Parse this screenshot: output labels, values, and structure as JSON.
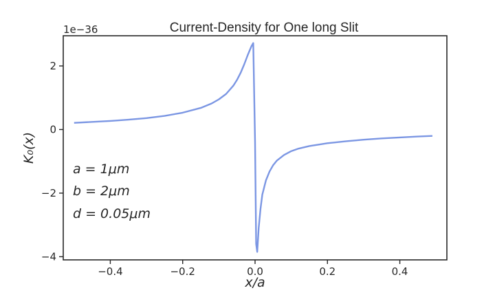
{
  "chart_data": {
    "type": "line",
    "title": "Current-Density for One long Slit",
    "xlabel": "x/a",
    "ylabel": "K₀(x)",
    "y_offset_text": "1e−36",
    "xlim": [
      -0.53,
      0.53
    ],
    "ylim": [
      -4.1,
      2.95
    ],
    "grid": false,
    "x_ticks": [
      -0.4,
      -0.2,
      0.0,
      0.2,
      0.4
    ],
    "x_tick_labels": [
      "−0.4",
      "−0.2",
      "0.0",
      "0.2",
      "0.4"
    ],
    "y_ticks": [
      -4,
      -2,
      0,
      2
    ],
    "y_tick_labels": [
      "−4",
      "−2",
      "0",
      "2"
    ],
    "annotations": [
      "a = 1μm",
      "b = 2μm",
      "d = 0.05μm"
    ],
    "series": [
      {
        "color": "#7b96e3",
        "x": [
          -0.5,
          -0.45,
          -0.4,
          -0.35,
          -0.3,
          -0.25,
          -0.2,
          -0.15,
          -0.12,
          -0.1,
          -0.08,
          -0.06,
          -0.05,
          -0.04,
          -0.03,
          -0.02,
          -0.01,
          -0.005,
          0.0,
          0.003,
          0.006,
          0.01,
          0.015,
          0.02,
          0.03,
          0.04,
          0.05,
          0.06,
          0.08,
          0.1,
          0.12,
          0.15,
          0.2,
          0.25,
          0.3,
          0.35,
          0.4,
          0.45,
          0.49
        ],
        "y": [
          0.21,
          0.24,
          0.27,
          0.31,
          0.36,
          0.43,
          0.53,
          0.68,
          0.82,
          0.95,
          1.12,
          1.38,
          1.56,
          1.78,
          2.05,
          2.35,
          2.62,
          2.72,
          -0.4,
          -3.6,
          -3.85,
          -3.1,
          -2.5,
          -2.05,
          -1.6,
          -1.32,
          -1.12,
          -0.98,
          -0.8,
          -0.68,
          -0.6,
          -0.52,
          -0.43,
          -0.37,
          -0.32,
          -0.28,
          -0.25,
          -0.22,
          -0.2
        ]
      }
    ]
  }
}
